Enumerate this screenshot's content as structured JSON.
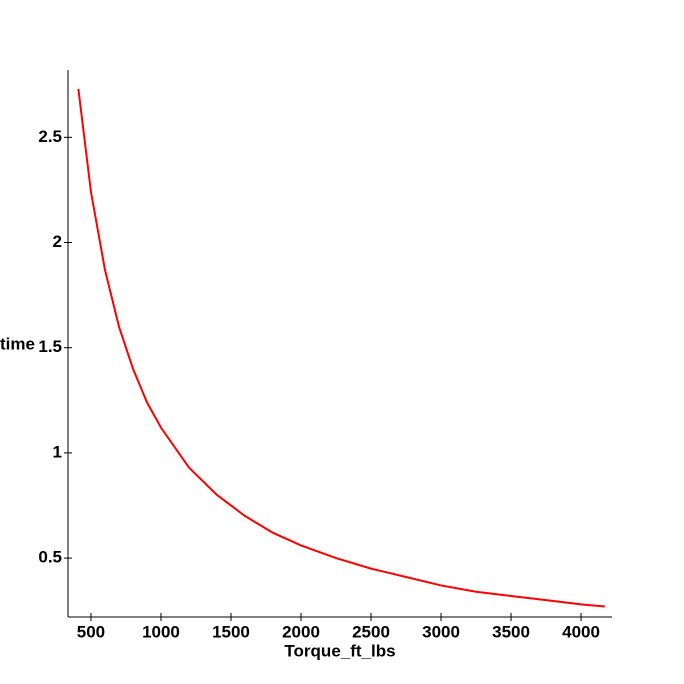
{
  "chart_data": {
    "type": "line",
    "xlabel": "Torque_ft_lbs",
    "ylabel": "time",
    "x": [
      410,
      500,
      600,
      700,
      800,
      900,
      1000,
      1200,
      1400,
      1600,
      1800,
      2000,
      2250,
      2500,
      2750,
      3000,
      3250,
      3500,
      3750,
      4000,
      4170
    ],
    "series": [
      {
        "color": "#ff0000",
        "values": [
          2.73,
          2.24,
          1.87,
          1.6,
          1.4,
          1.24,
          1.12,
          0.93,
          0.8,
          0.7,
          0.62,
          0.56,
          0.5,
          0.45,
          0.41,
          0.37,
          0.34,
          0.32,
          0.3,
          0.28,
          0.27
        ]
      }
    ],
    "xlim": [
      336,
      4221
    ],
    "ylim": [
      0.22,
      2.82
    ],
    "xticks": [
      500,
      1000,
      1500,
      2000,
      2500,
      3000,
      3500,
      4000
    ],
    "yticks": [
      0.5,
      1,
      1.5,
      2,
      2.5
    ]
  }
}
